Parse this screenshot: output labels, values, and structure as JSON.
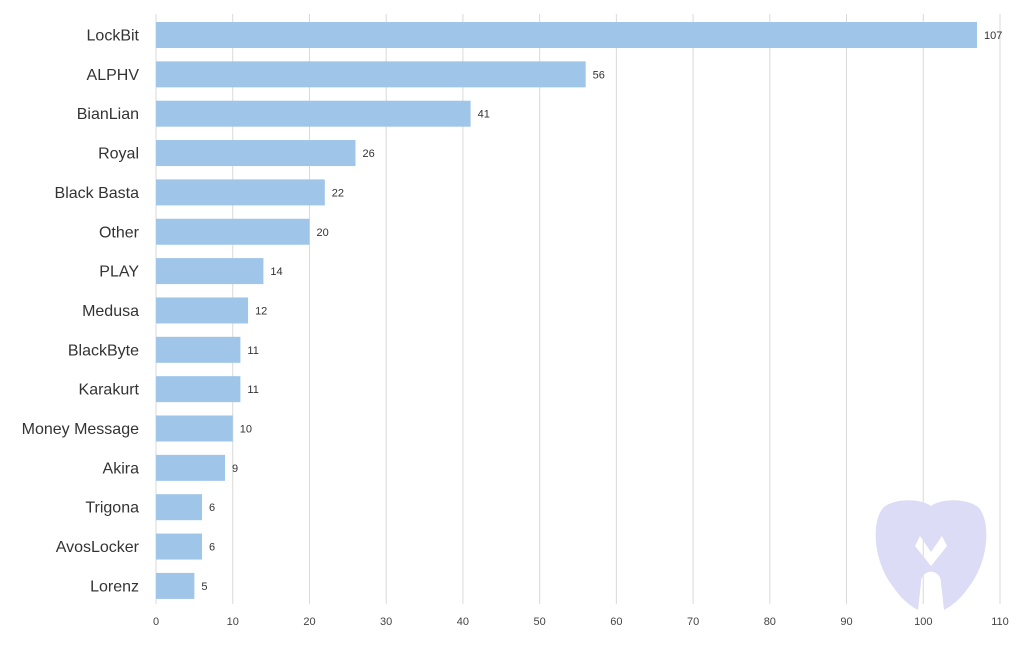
{
  "chart_data": {
    "type": "bar",
    "orientation": "horizontal",
    "categories": [
      "LockBit",
      "ALPHV",
      "BianLian",
      "Royal",
      "Black Basta",
      "Other",
      "PLAY",
      "Medusa",
      "BlackByte",
      "Karakurt",
      "Money Message",
      "Akira",
      "Trigona",
      "AvosLocker",
      "Lorenz"
    ],
    "values": [
      107,
      56,
      41,
      26,
      22,
      20,
      14,
      12,
      11,
      11,
      10,
      9,
      6,
      6,
      5
    ],
    "xlim": [
      0,
      110
    ],
    "xticks": [
      0,
      10,
      20,
      30,
      40,
      50,
      60,
      70,
      80,
      90,
      100,
      110
    ],
    "grid": true,
    "data_labels": true,
    "title": "",
    "xlabel": "",
    "ylabel": ""
  },
  "colors": {
    "bar": "#9fc5e8",
    "grid": "#d9d9d9",
    "watermark": "#dcdcf6"
  },
  "watermark": {
    "icon": "malwarebytes-logo-icon"
  }
}
